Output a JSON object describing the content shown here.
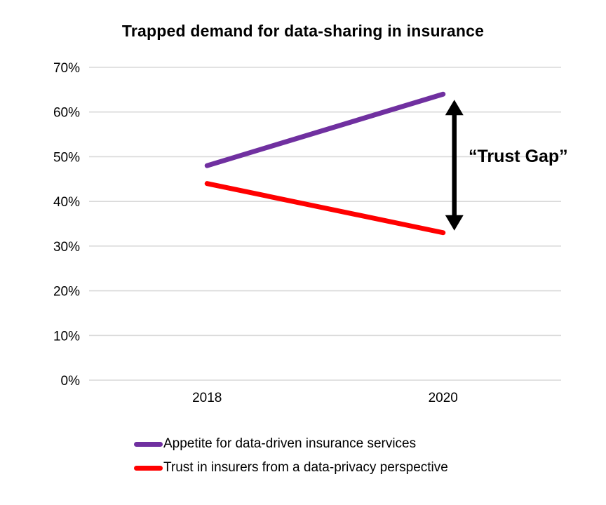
{
  "colors": {
    "gridline": "#D9D9D9",
    "arrow": "#000000",
    "text": "#000000",
    "background": "#FFFFFF"
  },
  "annotation": {
    "label": "“Trust Gap”"
  },
  "chart_data": {
    "type": "line",
    "title": "Trapped demand for data-sharing in insurance",
    "categories": [
      "2018",
      "2020"
    ],
    "series": [
      {
        "name": "Appetite for data-driven insurance services",
        "values": [
          48,
          64
        ],
        "color": "#7030A0"
      },
      {
        "name": "Trust in insurers from a data-privacy perspective",
        "values": [
          44,
          33
        ],
        "color": "#FF0000"
      }
    ],
    "xlabel": "",
    "ylabel": "",
    "ylim": [
      0,
      70
    ],
    "ytick_step": 10,
    "yticklabels": [
      "0%",
      "10%",
      "20%",
      "30%",
      "40%",
      "50%",
      "60%",
      "70%"
    ],
    "grid": true,
    "legend_position": "bottom-left",
    "annotations": [
      {
        "type": "double-arrow",
        "x_category": "2020",
        "y_from": 33,
        "y_to": 64,
        "label": "“Trust Gap”"
      }
    ]
  }
}
